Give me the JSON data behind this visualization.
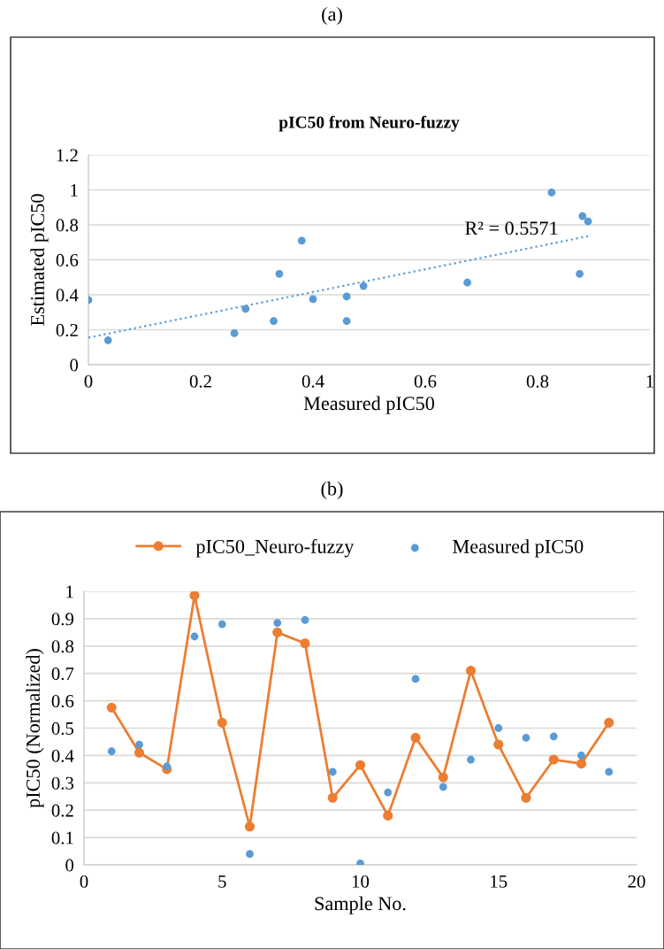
{
  "chart_data": [
    {
      "type": "scatter",
      "title": "pIC50 from Neuro-fuzzy",
      "xlabel": "Measured pIC50",
      "ylabel": "Estimated pIC50",
      "annotations": [
        "(a)",
        "R² = 0.5571"
      ],
      "series": [
        {
          "color": "#5b9bd5",
          "marker": "circle",
          "x": [
            0,
            0.035,
            0.26,
            0.28,
            0.33,
            0.34,
            0.38,
            0.4,
            0.46,
            0.46,
            0.49,
            0.675,
            0.825,
            0.875,
            0.88,
            0.89
          ],
          "values": [
            0.37,
            0.14,
            0.18,
            0.32,
            0.25,
            0.52,
            0.71,
            0.375,
            0.25,
            0.39,
            0.45,
            0.47,
            0.985,
            0.52,
            0.85,
            0.82
          ]
        },
        {
          "type": "line",
          "color": "#5b9bd5",
          "line_style": "dotted",
          "marker": "none",
          "x": [
            0,
            0.89
          ],
          "values": [
            0.155,
            0.735
          ]
        }
      ],
      "xlim": [
        0,
        1
      ],
      "xticks": [
        0,
        0.2,
        0.4,
        0.6,
        0.8,
        1
      ],
      "ylim": [
        0,
        1.2
      ],
      "yticks": [
        0,
        0.2,
        0.4,
        0.6,
        0.8,
        1,
        1.2
      ],
      "grid": "y",
      "legend": false
    },
    {
      "type": "line",
      "xlabel": "Sample No.",
      "ylabel": "pIC50 (Normalized)",
      "annotations": [
        "(b)"
      ],
      "x": [
        1,
        2,
        3,
        4,
        5,
        6,
        7,
        8,
        9,
        10,
        11,
        12,
        13,
        14,
        15,
        16,
        17,
        18,
        19
      ],
      "series": [
        {
          "name": "pIC50_Neuro-fuzzy",
          "color": "#ed7d31",
          "marker": "circle",
          "line_style": "solid",
          "values": [
            0.575,
            0.41,
            0.35,
            0.985,
            0.52,
            0.14,
            0.85,
            0.81,
            0.245,
            0.365,
            0.18,
            0.465,
            0.32,
            0.71,
            0.44,
            0.245,
            0.385,
            0.37,
            0.52
          ]
        },
        {
          "name": "Measured pIC50",
          "type": "scatter",
          "color": "#5b9bd5",
          "marker": "circle",
          "values": [
            0.415,
            0.44,
            0.36,
            0.835,
            0.88,
            0.04,
            0.885,
            0.895,
            0.34,
            0.005,
            0.265,
            0.68,
            0.285,
            0.385,
            0.5,
            0.465,
            0.47,
            0.4,
            0.34
          ]
        }
      ],
      "xlim": [
        0,
        20
      ],
      "xticks": [
        0,
        5,
        10,
        15,
        20
      ],
      "ylim": [
        0,
        1
      ],
      "yticks": [
        0,
        0.1,
        0.2,
        0.3,
        0.4,
        0.5,
        0.6,
        0.7,
        0.8,
        0.9,
        1
      ],
      "grid": "y",
      "legend": "top"
    }
  ]
}
